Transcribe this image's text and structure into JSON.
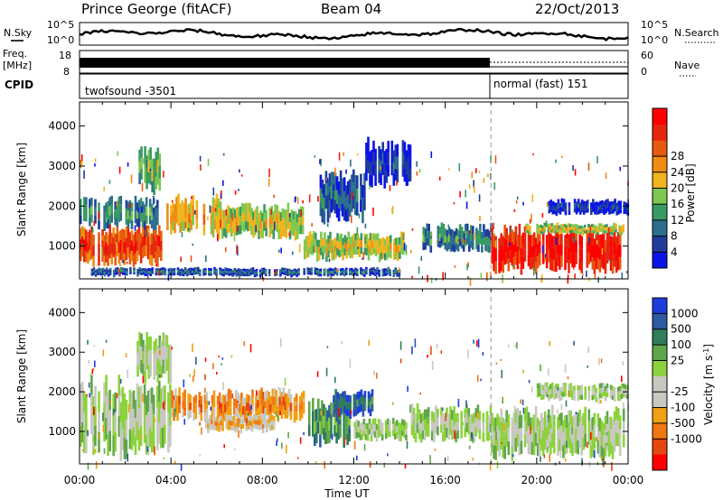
{
  "header": {
    "station": "Prince George (fitACF)",
    "beam": "Beam 04",
    "date": "22/Oct/2013"
  },
  "strips": {
    "nsky_label": "N.Sky",
    "nsky_ticks": [
      "10^5",
      "10^0"
    ],
    "nsearch_label": "N.Search",
    "nsearch_ticks": [
      "10^5",
      "10^0"
    ],
    "freq_label": "Freq.",
    "freq_unit": "[MHz]",
    "freq_ticks": [
      "18",
      "8"
    ],
    "nave_label": "Nave",
    "nave_ticks": [
      "60",
      "0"
    ],
    "cpid_label": "CPID",
    "cpid_segments": [
      "twofsound -3501",
      "normal (fast) 151"
    ]
  },
  "colors": {
    "power": [
      "#0a14e6",
      "#1f3c9c",
      "#2c6e8e",
      "#3a9a63",
      "#7ec850",
      "#f0b41e",
      "#f08c14",
      "#e65a0f",
      "#e6260f",
      "#ff0000"
    ],
    "velocity": [
      "#1e3cdc",
      "#2d5aa0",
      "#2f7d5a",
      "#5fa64a",
      "#8cd23c",
      "#c8c8c0",
      "#c8c8c0",
      "#f0a014",
      "#f07814",
      "#e6460f",
      "#ff0000"
    ]
  },
  "chart_data": [
    {
      "type": "heatmap",
      "panel": "power",
      "ylabel": "Slant Range [km]",
      "xlabel": "Time UT",
      "xticks": [
        "00:00",
        "04:00",
        "08:00",
        "12:00",
        "16:00",
        "20:00",
        "00:00"
      ],
      "xlim_hours": [
        0,
        24
      ],
      "ylim": [
        180,
        4600
      ],
      "yticks": [
        1000,
        2000,
        3000,
        4000
      ],
      "colorbar_label": "Power [dB]",
      "colorbar_ticks": [
        4,
        8,
        12,
        16,
        20,
        24,
        28
      ],
      "mode_change_hour": 18.0,
      "blobs": [
        {
          "t0": 0.0,
          "t1": 3.6,
          "r0": 550,
          "r1": 1450,
          "level": 8
        },
        {
          "t0": 0.0,
          "t1": 3.4,
          "r0": 1450,
          "r1": 2150,
          "level": 3
        },
        {
          "t0": 2.5,
          "t1": 3.5,
          "r0": 2400,
          "r1": 3400,
          "level": 4
        },
        {
          "t0": 3.8,
          "t1": 6.2,
          "r0": 1400,
          "r1": 2200,
          "level": 6
        },
        {
          "t0": 5.8,
          "t1": 9.8,
          "r0": 1250,
          "r1": 2000,
          "level": 5
        },
        {
          "t0": 9.8,
          "t1": 14.2,
          "r0": 700,
          "r1": 1300,
          "level": 5
        },
        {
          "t0": 10.5,
          "t1": 12.5,
          "r0": 1700,
          "r1": 2800,
          "level": 2
        },
        {
          "t0": 12.5,
          "t1": 14.5,
          "r0": 2600,
          "r1": 3600,
          "level": 1
        },
        {
          "t0": 15.0,
          "t1": 18.0,
          "r0": 900,
          "r1": 1500,
          "level": 3
        },
        {
          "t0": 18.0,
          "t1": 23.6,
          "r0": 380,
          "r1": 1400,
          "level": 9
        },
        {
          "t0": 19.5,
          "t1": 23.8,
          "r0": 1300,
          "r1": 1550,
          "level": 5
        },
        {
          "t0": 20.5,
          "t1": 24.0,
          "r0": 1800,
          "r1": 2150,
          "level": 1
        },
        {
          "t0": 0.5,
          "t1": 14.0,
          "r0": 250,
          "r1": 450,
          "level": 2
        }
      ]
    },
    {
      "type": "heatmap",
      "panel": "velocity",
      "ylabel": "Slant Range [km]",
      "xlabel": "Time UT",
      "xticks": [
        "00:00",
        "04:00",
        "08:00",
        "12:00",
        "16:00",
        "20:00",
        "00:00"
      ],
      "xlim_hours": [
        0,
        24
      ],
      "ylim": [
        180,
        4600
      ],
      "yticks": [
        1000,
        2000,
        3000,
        4000
      ],
      "colorbar_label": "Velocity [m s^-1]",
      "colorbar_ticks": [
        "1000",
        "500",
        "100",
        "25",
        "-25",
        "-100",
        "-500",
        "-1000"
      ],
      "mode_change_hour": 18.0,
      "blobs": [
        {
          "t0": 0.0,
          "t1": 4.0,
          "r0": 500,
          "r1": 2200,
          "level": 5
        },
        {
          "t0": 2.5,
          "t1": 4.0,
          "r0": 2300,
          "r1": 3400,
          "level": 5
        },
        {
          "t0": 4.0,
          "t1": 9.8,
          "r0": 1300,
          "r1": 2000,
          "level": 8
        },
        {
          "t0": 10.0,
          "t1": 11.8,
          "r0": 700,
          "r1": 1700,
          "level": 3
        },
        {
          "t0": 11.0,
          "t1": 12.8,
          "r0": 1400,
          "r1": 2000,
          "level": 2
        },
        {
          "t0": 12.0,
          "t1": 14.3,
          "r0": 800,
          "r1": 1300,
          "level": 5
        },
        {
          "t0": 14.5,
          "t1": 18.0,
          "r0": 800,
          "r1": 1600,
          "level": 5
        },
        {
          "t0": 18.0,
          "t1": 23.8,
          "r0": 400,
          "r1": 1500,
          "level": 5
        },
        {
          "t0": 20.0,
          "t1": 24.0,
          "r0": 1800,
          "r1": 2200,
          "level": 5
        },
        {
          "t0": 5.5,
          "t1": 8.5,
          "r0": 1000,
          "r1": 1400,
          "level": 7
        }
      ]
    }
  ]
}
